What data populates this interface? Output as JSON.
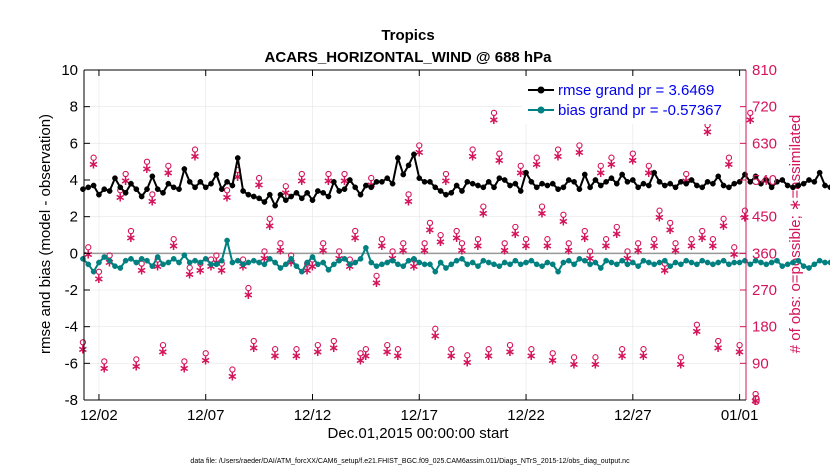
{
  "chart_data": {
    "type": "line",
    "title": "Tropics",
    "subtitle": "ACARS_HORIZONTAL_WIND @ 688 hPa",
    "xlabel": "Dec.01,2015 00:00:00 start",
    "ylabel": "rmse and bias (model - observation)",
    "ylabel_right": "# of obs: o=possible; ∗=assimilated",
    "footnote": "data file: /Users/raeder/DAI/ATM_forcXX/CAM6_setup/f.e21.FHIST_BGC.f09_025.CAM6assim.011/Diags_NTrS_2015-12/obs_diag_output.nc",
    "x_range_days": [
      0.3,
      31.3
    ],
    "x_ticks": [
      {
        "day": 1,
        "label": "12/02"
      },
      {
        "day": 6,
        "label": "12/07"
      },
      {
        "day": 11,
        "label": "12/12"
      },
      {
        "day": 16,
        "label": "12/17"
      },
      {
        "day": 21,
        "label": "12/22"
      },
      {
        "day": 26,
        "label": "12/27"
      },
      {
        "day": 31,
        "label": "01/01"
      }
    ],
    "ylim": [
      -8,
      10
    ],
    "y_ticks": [
      "10",
      "8",
      "6",
      "4",
      "2",
      "0",
      "-2",
      "-4",
      "-6",
      "-8"
    ],
    "y_tick_values": [
      10,
      8,
      6,
      4,
      2,
      0,
      -2,
      -4,
      -6,
      -8
    ],
    "ylim_right": [
      0,
      810
    ],
    "y_ticks_right": [
      "810",
      "720",
      "630",
      "540",
      "450",
      "360",
      "270",
      "180",
      "90",
      "0"
    ],
    "y_tick_values_right": [
      810,
      720,
      630,
      540,
      450,
      360,
      270,
      180,
      90,
      0
    ],
    "legend": [
      {
        "name": "rmse grand pr = 3.6469",
        "color": "#000000"
      },
      {
        "name": "bias grand pr = -0.57367",
        "color": "#008080"
      }
    ],
    "colors": {
      "rmse": "#000000",
      "bias": "#008080",
      "obs": "#d4145a",
      "zero_line": "#999999"
    },
    "series": [
      {
        "name": "rmse",
        "x_start": 0.25,
        "x_step": 0.25,
        "values": [
          3.5,
          3.6,
          3.7,
          3.2,
          3.5,
          3.4,
          4.1,
          3.6,
          3.3,
          3.8,
          3.5,
          3.1,
          3.5,
          4.2,
          3.5,
          3.3,
          3.8,
          3.6,
          3.5,
          4.6,
          3.9,
          3.6,
          3.9,
          3.6,
          3.8,
          4.3,
          3.5,
          3.9,
          3.7,
          5.2,
          3.4,
          3.2,
          3.1,
          3.0,
          2.8,
          3.2,
          2.6,
          3.2,
          2.9,
          3.1,
          3.3,
          3.0,
          3.3,
          2.9,
          3.4,
          3.3,
          3.1,
          3.9,
          3.4,
          3.5,
          4.0,
          3.6,
          3.2,
          3.7,
          3.6,
          3.9,
          3.9,
          4.1,
          3.8,
          5.2,
          4.3,
          4.8,
          5.4,
          4.1,
          3.9,
          3.9,
          3.6,
          3.4,
          3.2,
          3.3,
          3.7,
          3.4,
          3.9,
          3.8,
          3.7,
          3.6,
          3.9,
          3.6,
          4.1,
          4.0,
          3.7,
          3.8,
          3.4,
          4.4,
          3.9,
          3.6,
          3.8,
          3.7,
          3.8,
          3.5,
          3.6,
          4.0,
          3.9,
          3.5,
          4.3,
          3.6,
          4.0,
          3.7,
          3.9,
          4.1,
          3.8,
          4.3,
          3.9,
          4.0,
          3.6,
          3.8,
          3.7,
          4.4,
          3.9,
          3.7,
          3.8,
          3.6,
          3.9,
          3.8,
          4.0,
          3.7,
          3.6,
          3.9,
          3.8,
          4.2,
          3.7,
          3.6,
          3.8,
          3.9,
          4.3,
          3.9,
          4.2,
          3.8,
          4.0,
          3.6,
          3.9,
          4.0,
          3.7,
          3.6,
          3.7,
          3.8,
          4.0,
          3.9,
          4.4,
          3.7,
          3.6,
          3.8,
          3.7,
          3.9,
          3.8,
          3.6,
          3.7,
          3.9,
          3.8,
          4.5,
          3.9,
          3.8,
          3.7,
          3.9,
          3.7,
          3.9,
          3.6,
          3.7,
          3.9,
          3.7,
          3.8,
          3.9,
          3.8,
          3.6,
          4.1,
          3.6,
          3.8,
          4.0,
          3.9,
          3.7,
          3.6,
          4.1,
          3.9,
          4.0,
          3.7,
          3.6,
          3.8,
          3.9,
          4.2,
          3.8,
          4.0,
          3.9,
          3.7,
          3.8,
          3.6,
          3.9,
          3.7,
          3.9,
          3.8,
          3.9,
          3.8,
          3.7,
          3.9,
          3.6,
          3.6,
          3.8,
          3.6,
          3.9,
          4.1,
          3.8,
          3.7
        ]
      },
      {
        "name": "bias",
        "x_start": 0.25,
        "x_step": 0.25,
        "values": [
          -0.3,
          -0.6,
          -1.0,
          -0.5,
          -0.2,
          -0.4,
          -0.7,
          -0.8,
          -0.4,
          -0.3,
          -0.5,
          -0.3,
          -0.4,
          -0.7,
          -0.2,
          -0.6,
          -0.5,
          -0.3,
          -0.5,
          -0.1,
          -0.5,
          -0.4,
          -0.5,
          -0.3,
          -0.6,
          -0.6,
          -0.4,
          0.7,
          -0.5,
          -0.4,
          -0.6,
          -0.5,
          -0.4,
          -0.5,
          -0.6,
          -0.3,
          -0.5,
          -0.8,
          -0.6,
          -0.3,
          -0.7,
          -1.0,
          -0.5,
          -0.2,
          -0.6,
          -0.5,
          -0.9,
          -0.6,
          -0.4,
          -0.3,
          -0.6,
          -0.5,
          -0.3,
          0.3,
          -0.5,
          -0.7,
          -0.6,
          -0.5,
          -0.4,
          -0.6,
          -0.7,
          -0.4,
          -0.3,
          -0.5,
          -0.6,
          -0.6,
          -1.0,
          -0.5,
          -0.8,
          -0.6,
          -0.4,
          -0.3,
          -0.6,
          -0.5,
          -0.7,
          -0.4,
          -0.5,
          -0.6,
          -0.7,
          -0.5,
          -0.6,
          -0.4,
          -0.6,
          -0.5,
          -0.4,
          -0.6,
          -0.7,
          -0.5,
          -0.6,
          -1.0,
          -0.5,
          -0.4,
          -0.6,
          -0.3,
          -0.4,
          -0.6,
          -0.5,
          -0.8,
          -0.4,
          -0.5,
          -0.6,
          -0.4,
          -0.6,
          -0.5,
          -0.7,
          -0.4,
          -0.5,
          -0.6,
          -0.5,
          -0.4,
          -0.7,
          -0.5,
          -0.6,
          -0.4,
          -0.5,
          -0.6,
          -0.4,
          -0.5,
          -0.6,
          -0.5,
          -0.4,
          -0.6,
          -0.5,
          -0.5,
          -0.4,
          -0.6,
          -0.4,
          -0.5,
          -0.6,
          -0.5,
          -0.4,
          -0.7,
          -0.6,
          -0.5,
          -0.4,
          -0.7,
          -0.8,
          -0.6,
          -0.4,
          -0.5,
          -0.5,
          -0.4,
          -0.6,
          -0.4,
          -0.5,
          -0.5,
          -0.4,
          -0.6,
          -0.5,
          -0.3,
          -0.4,
          -0.5,
          -0.6,
          -0.4,
          -0.5,
          -0.5,
          -0.4,
          -0.5,
          -0.3,
          -0.6,
          -0.4,
          -0.5,
          -0.4,
          -0.6,
          -0.3,
          -0.4,
          -0.5,
          -0.4,
          -0.2,
          -0.5,
          -0.6,
          -0.4,
          -0.3,
          -0.5,
          -0.4,
          -0.6,
          -0.2,
          0.0,
          -0.3,
          -0.4,
          -0.6,
          0.1,
          0.0,
          0.3,
          0.1,
          -0.2,
          -0.5,
          -0.4,
          -0.6,
          0.5,
          0.0,
          -0.3,
          -0.5,
          -0.3,
          -0.2,
          -0.6,
          0.0,
          0.1,
          -0.4,
          -0.6,
          -1.1,
          -1.0
        ]
      }
    ],
    "obs_points": [
      {
        "x": 0.25,
        "y": 127
      },
      {
        "x": 0.5,
        "y": 360
      },
      {
        "x": 0.75,
        "y": 580
      },
      {
        "x": 1.0,
        "y": 300
      },
      {
        "x": 1.25,
        "y": 80
      },
      {
        "x": 1.5,
        "y": 340
      },
      {
        "x": 2.0,
        "y": 500
      },
      {
        "x": 2.25,
        "y": 540
      },
      {
        "x": 2.5,
        "y": 400
      },
      {
        "x": 2.75,
        "y": 85
      },
      {
        "x": 3.0,
        "y": 320
      },
      {
        "x": 3.25,
        "y": 570
      },
      {
        "x": 3.5,
        "y": 490
      },
      {
        "x": 3.75,
        "y": 330
      },
      {
        "x": 4.0,
        "y": 120
      },
      {
        "x": 4.25,
        "y": 560
      },
      {
        "x": 4.5,
        "y": 380
      },
      {
        "x": 5.0,
        "y": 80
      },
      {
        "x": 5.25,
        "y": 310
      },
      {
        "x": 5.5,
        "y": 600
      },
      {
        "x": 5.75,
        "y": 320
      },
      {
        "x": 6.0,
        "y": 100
      },
      {
        "x": 6.25,
        "y": 330
      },
      {
        "x": 6.5,
        "y": 340
      },
      {
        "x": 6.75,
        "y": 320
      },
      {
        "x": 7.0,
        "y": 500
      },
      {
        "x": 7.25,
        "y": 60
      },
      {
        "x": 7.5,
        "y": 550
      },
      {
        "x": 7.75,
        "y": 330
      },
      {
        "x": 8.0,
        "y": 260
      },
      {
        "x": 8.25,
        "y": 130
      },
      {
        "x": 8.5,
        "y": 530
      },
      {
        "x": 8.75,
        "y": 350
      },
      {
        "x": 9.0,
        "y": 430
      },
      {
        "x": 9.25,
        "y": 110
      },
      {
        "x": 9.5,
        "y": 370
      },
      {
        "x": 9.75,
        "y": 510
      },
      {
        "x": 10.0,
        "y": 340
      },
      {
        "x": 10.25,
        "y": 110
      },
      {
        "x": 10.5,
        "y": 540
      },
      {
        "x": 10.75,
        "y": 320
      },
      {
        "x": 11.0,
        "y": 330
      },
      {
        "x": 11.25,
        "y": 120
      },
      {
        "x": 11.5,
        "y": 370
      },
      {
        "x": 11.75,
        "y": 540
      },
      {
        "x": 12.0,
        "y": 130
      },
      {
        "x": 12.25,
        "y": 350
      },
      {
        "x": 12.5,
        "y": 540
      },
      {
        "x": 12.75,
        "y": 330
      },
      {
        "x": 13.0,
        "y": 400
      },
      {
        "x": 13.25,
        "y": 100
      },
      {
        "x": 13.5,
        "y": 110
      },
      {
        "x": 13.75,
        "y": 530
      },
      {
        "x": 14.0,
        "y": 290
      },
      {
        "x": 14.25,
        "y": 380
      },
      {
        "x": 14.5,
        "y": 120
      },
      {
        "x": 14.75,
        "y": 350
      },
      {
        "x": 15.0,
        "y": 110
      },
      {
        "x": 15.25,
        "y": 370
      },
      {
        "x": 15.5,
        "y": 490
      },
      {
        "x": 15.75,
        "y": 330
      },
      {
        "x": 16.0,
        "y": 610
      },
      {
        "x": 16.25,
        "y": 370
      },
      {
        "x": 16.5,
        "y": 420
      },
      {
        "x": 16.75,
        "y": 160
      },
      {
        "x": 17.0,
        "y": 390
      },
      {
        "x": 17.25,
        "y": 540
      },
      {
        "x": 17.5,
        "y": 110
      },
      {
        "x": 17.75,
        "y": 400
      },
      {
        "x": 18.0,
        "y": 370
      },
      {
        "x": 18.25,
        "y": 95
      },
      {
        "x": 18.5,
        "y": 600
      },
      {
        "x": 18.75,
        "y": 380
      },
      {
        "x": 19.0,
        "y": 460
      },
      {
        "x": 19.25,
        "y": 110
      },
      {
        "x": 19.5,
        "y": 690
      },
      {
        "x": 19.75,
        "y": 590
      },
      {
        "x": 20.0,
        "y": 370
      },
      {
        "x": 20.25,
        "y": 120
      },
      {
        "x": 20.5,
        "y": 410
      },
      {
        "x": 20.75,
        "y": 560
      },
      {
        "x": 21.0,
        "y": 380
      },
      {
        "x": 21.25,
        "y": 110
      },
      {
        "x": 21.5,
        "y": 580
      },
      {
        "x": 21.75,
        "y": 460
      },
      {
        "x": 22.0,
        "y": 380
      },
      {
        "x": 22.25,
        "y": 100
      },
      {
        "x": 22.5,
        "y": 600
      },
      {
        "x": 22.75,
        "y": 440
      },
      {
        "x": 23.0,
        "y": 370
      },
      {
        "x": 23.25,
        "y": 90
      },
      {
        "x": 23.5,
        "y": 610
      },
      {
        "x": 23.75,
        "y": 400
      },
      {
        "x": 24.0,
        "y": 350
      },
      {
        "x": 24.25,
        "y": 90
      },
      {
        "x": 24.5,
        "y": 560
      },
      {
        "x": 24.75,
        "y": 380
      },
      {
        "x": 25.0,
        "y": 580
      },
      {
        "x": 25.25,
        "y": 410
      },
      {
        "x": 25.5,
        "y": 110
      },
      {
        "x": 25.75,
        "y": 350
      },
      {
        "x": 26.0,
        "y": 590
      },
      {
        "x": 26.25,
        "y": 370
      },
      {
        "x": 26.5,
        "y": 110
      },
      {
        "x": 26.75,
        "y": 560
      },
      {
        "x": 27.0,
        "y": 380
      },
      {
        "x": 27.25,
        "y": 450
      },
      {
        "x": 27.5,
        "y": 320
      },
      {
        "x": 27.75,
        "y": 420
      },
      {
        "x": 28.0,
        "y": 370
      },
      {
        "x": 28.25,
        "y": 90
      },
      {
        "x": 28.5,
        "y": 540
      },
      {
        "x": 28.75,
        "y": 380
      },
      {
        "x": 29.0,
        "y": 170
      },
      {
        "x": 29.25,
        "y": 400
      },
      {
        "x": 29.5,
        "y": 660
      },
      {
        "x": 29.75,
        "y": 380
      },
      {
        "x": 30.0,
        "y": 130
      },
      {
        "x": 30.25,
        "y": 430
      },
      {
        "x": 30.5,
        "y": 580
      },
      {
        "x": 30.75,
        "y": 360
      },
      {
        "x": 31.0,
        "y": 120
      },
      {
        "x": 31.25,
        "y": 450
      },
      {
        "x": 31.5,
        "y": 690
      },
      {
        "x": 31.75,
        "y": 0
      }
    ]
  }
}
